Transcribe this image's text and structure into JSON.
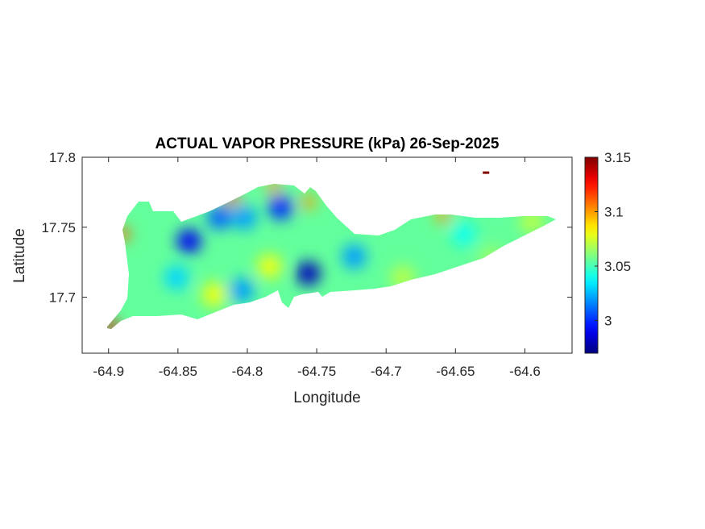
{
  "chart_data": {
    "type": "heatmap",
    "title": "ACTUAL VAPOR PRESSURE (kPa) 26-Sep-2025",
    "xlabel": "Longitude",
    "ylabel": "Latitude",
    "xlim": [
      -64.919,
      -64.566
    ],
    "ylim": [
      17.66,
      17.8
    ],
    "xticks": [
      -64.9,
      -64.85,
      -64.8,
      -64.75,
      -64.7,
      -64.65,
      -64.6
    ],
    "xtick_labels": [
      "-64.9",
      "-64.85",
      "-64.8",
      "-64.75",
      "-64.7",
      "-64.65",
      "-64.6"
    ],
    "yticks": [
      17.7,
      17.75,
      17.8
    ],
    "ytick_labels": [
      "17.7",
      "17.75",
      "17.8"
    ],
    "colormap": "jet",
    "colorbar": {
      "range": [
        2.97,
        3.15
      ],
      "ticks": [
        3,
        3.05,
        3.1,
        3.15
      ],
      "tick_labels": [
        "3",
        "3.05",
        "3.1",
        "3.15"
      ]
    },
    "background_value": 3.055,
    "features": [
      {
        "lon": -64.842,
        "lat": 17.74,
        "value": 2.99
      },
      {
        "lon": -64.82,
        "lat": 17.757,
        "value": 3.01
      },
      {
        "lon": -64.802,
        "lat": 17.757,
        "value": 3.02
      },
      {
        "lon": -64.776,
        "lat": 17.764,
        "value": 3.0
      },
      {
        "lon": -64.756,
        "lat": 17.717,
        "value": 2.98
      },
      {
        "lon": -64.723,
        "lat": 17.729,
        "value": 3.02
      },
      {
        "lon": -64.804,
        "lat": 17.705,
        "value": 3.02
      },
      {
        "lon": -64.851,
        "lat": 17.714,
        "value": 3.03
      },
      {
        "lon": -64.644,
        "lat": 17.745,
        "value": 3.04
      },
      {
        "lon": -64.784,
        "lat": 17.722,
        "value": 3.08
      },
      {
        "lon": -64.824,
        "lat": 17.702,
        "value": 3.08
      },
      {
        "lon": -64.688,
        "lat": 17.714,
        "value": 3.07
      },
      {
        "lon": -64.624,
        "lat": 17.728,
        "value": 3.065
      },
      {
        "lon": -64.595,
        "lat": 17.754,
        "value": 3.07
      },
      {
        "lon": -64.898,
        "lat": 17.679,
        "value": 3.13
      },
      {
        "lon": -64.811,
        "lat": 17.771,
        "value": 3.11
      },
      {
        "lon": -64.781,
        "lat": 17.779,
        "value": 3.1
      },
      {
        "lon": -64.756,
        "lat": 17.768,
        "value": 3.1
      },
      {
        "lon": -64.89,
        "lat": 17.745,
        "value": 3.11
      },
      {
        "lon": -64.659,
        "lat": 17.758,
        "value": 3.1
      }
    ],
    "outlier": {
      "lon": -64.628,
      "lat": 17.789,
      "value": 3.15
    }
  }
}
